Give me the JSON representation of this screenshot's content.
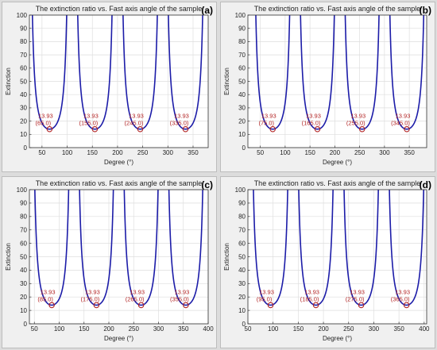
{
  "chart_data": [
    {
      "panel": "(a)",
      "type": "line",
      "title": "The extinction ratio vs. Fast axis angle of the sample",
      "xlabel": "Degree (°)",
      "ylabel": "Extinction",
      "xlim": [
        25,
        380
      ],
      "ylim": [
        0,
        100
      ],
      "xticks": [
        50,
        100,
        150,
        200,
        250,
        300,
        350
      ],
      "yticks": [
        0,
        10,
        20,
        30,
        40,
        50,
        60,
        70,
        80,
        90,
        100
      ],
      "grid": true,
      "period": 90,
      "min_value": 13.93,
      "minima": [
        {
          "x": 65,
          "y": 13.93,
          "value_label": "13.93",
          "x_label": "(65.0)"
        },
        {
          "x": 155,
          "y": 13.93,
          "value_label": "13.93",
          "x_label": "(155.0)"
        },
        {
          "x": 245,
          "y": 13.93,
          "value_label": "13.93",
          "x_label": "(245.0)"
        },
        {
          "x": 335,
          "y": 13.93,
          "value_label": "13.93",
          "x_label": "(335.0)"
        }
      ]
    },
    {
      "panel": "(b)",
      "type": "line",
      "title": "The extinction ratio vs. Fast axis angle of the sample",
      "xlabel": "Degree (°)",
      "ylabel": "Extinction",
      "xlim": [
        25,
        385
      ],
      "ylim": [
        0,
        100
      ],
      "xticks": [
        50,
        100,
        150,
        200,
        250,
        300,
        350
      ],
      "yticks": [
        0,
        10,
        20,
        30,
        40,
        50,
        60,
        70,
        80,
        90,
        100
      ],
      "grid": true,
      "period": 90,
      "min_value": 13.93,
      "minima": [
        {
          "x": 75,
          "y": 13.93,
          "value_label": "13.93",
          "x_label": "(75.0)"
        },
        {
          "x": 165,
          "y": 13.93,
          "value_label": "13.93",
          "x_label": "(165.0)"
        },
        {
          "x": 255,
          "y": 13.93,
          "value_label": "13.93",
          "x_label": "(255.0)"
        },
        {
          "x": 345,
          "y": 13.93,
          "value_label": "13.93",
          "x_label": "(345.0)"
        }
      ]
    },
    {
      "panel": "(c)",
      "type": "line",
      "title": "The extinction ratio vs. Fast axis angle of the sample",
      "xlabel": "Degree (°)",
      "ylabel": "Extinction",
      "xlim": [
        40,
        400
      ],
      "ylim": [
        0,
        100
      ],
      "xticks": [
        50,
        100,
        150,
        200,
        250,
        300,
        350,
        400
      ],
      "yticks": [
        0,
        10,
        20,
        30,
        40,
        50,
        60,
        70,
        80,
        90,
        100
      ],
      "grid": true,
      "period": 90,
      "min_value": 13.93,
      "minima": [
        {
          "x": 85,
          "y": 13.93,
          "value_label": "13.93",
          "x_label": "(85.0)"
        },
        {
          "x": 175,
          "y": 13.93,
          "value_label": "13.93",
          "x_label": "(175.0)"
        },
        {
          "x": 265,
          "y": 13.93,
          "value_label": "13.93",
          "x_label": "(265.0)"
        },
        {
          "x": 355,
          "y": 13.93,
          "value_label": "13.93",
          "x_label": "(355.0)"
        }
      ]
    },
    {
      "panel": "(d)",
      "type": "line",
      "title": "The extinction ratio vs. Fast axis angle of the sample",
      "xlabel": "Degree (°)",
      "ylabel": "Extinction",
      "xlim": [
        50,
        405
      ],
      "ylim": [
        0,
        100
      ],
      "xticks": [
        50,
        100,
        150,
        200,
        250,
        300,
        350,
        400
      ],
      "yticks": [
        0,
        10,
        20,
        30,
        40,
        50,
        60,
        70,
        80,
        90,
        100
      ],
      "grid": true,
      "period": 90,
      "min_value": 13.93,
      "minima": [
        {
          "x": 95,
          "y": 13.93,
          "value_label": "13.93",
          "x_label": "(95.0)"
        },
        {
          "x": 185,
          "y": 13.93,
          "value_label": "13.93",
          "x_label": "(185.0)"
        },
        {
          "x": 275,
          "y": 13.93,
          "value_label": "13.93",
          "x_label": "(275.0)"
        },
        {
          "x": 365,
          "y": 13.93,
          "value_label": "13.93",
          "x_label": "(365.0)"
        }
      ]
    }
  ],
  "colors": {
    "curve": "#1c1ca8",
    "annotation": "#b22222",
    "grid": "#dedede",
    "axes_bg": "#ffffff",
    "panel_bg": "#f0f0f0"
  }
}
